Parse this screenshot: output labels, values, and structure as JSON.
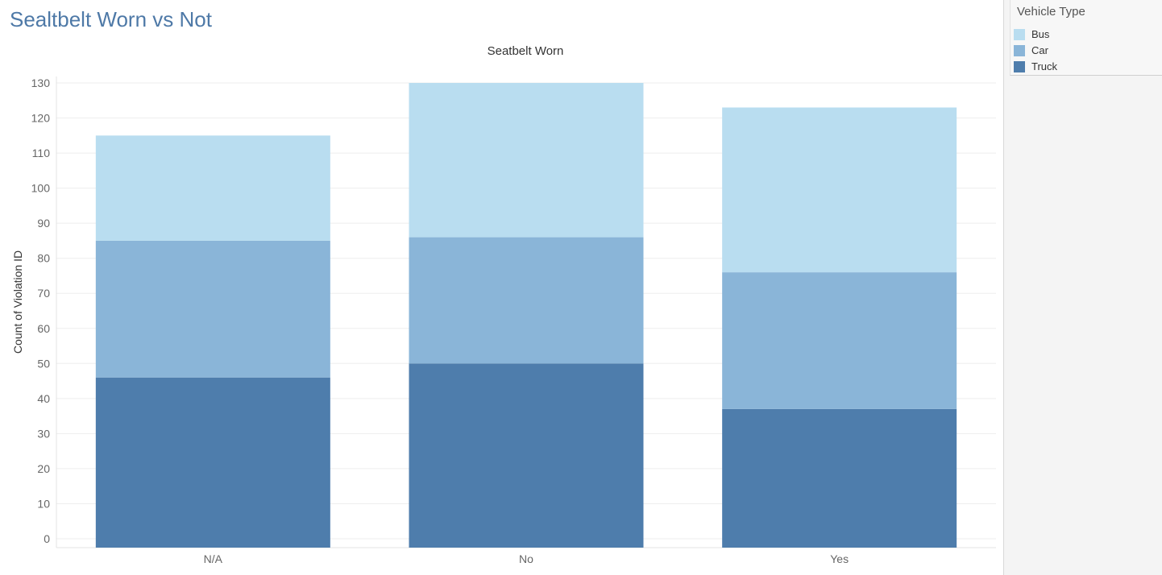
{
  "sheet": {
    "title": "Sealtbelt Worn vs Not"
  },
  "legend": {
    "title": "Vehicle Type",
    "items": [
      {
        "label": "Bus",
        "color": "#b9ddf0"
      },
      {
        "label": "Car",
        "color": "#8ab5d8"
      },
      {
        "label": "Truck",
        "color": "#4e7dac"
      }
    ]
  },
  "chart_data": {
    "type": "bar",
    "stacked": true,
    "title": "Seatbelt Worn",
    "xlabel": "",
    "ylabel": "Count of Violation ID",
    "categories": [
      "N/A",
      "No",
      "Yes"
    ],
    "series": [
      {
        "name": "Truck",
        "color": "#4e7dac",
        "values": [
          46,
          50,
          37
        ]
      },
      {
        "name": "Car",
        "color": "#8ab5d8",
        "values": [
          39,
          36,
          39
        ]
      },
      {
        "name": "Bus",
        "color": "#b9ddf0",
        "values": [
          30,
          44,
          47
        ]
      }
    ],
    "ylim": [
      0,
      130
    ],
    "yticks": [
      0,
      10,
      20,
      30,
      40,
      50,
      60,
      70,
      80,
      90,
      100,
      110,
      120,
      130
    ],
    "grid": true,
    "legend_position": "top-right"
  }
}
